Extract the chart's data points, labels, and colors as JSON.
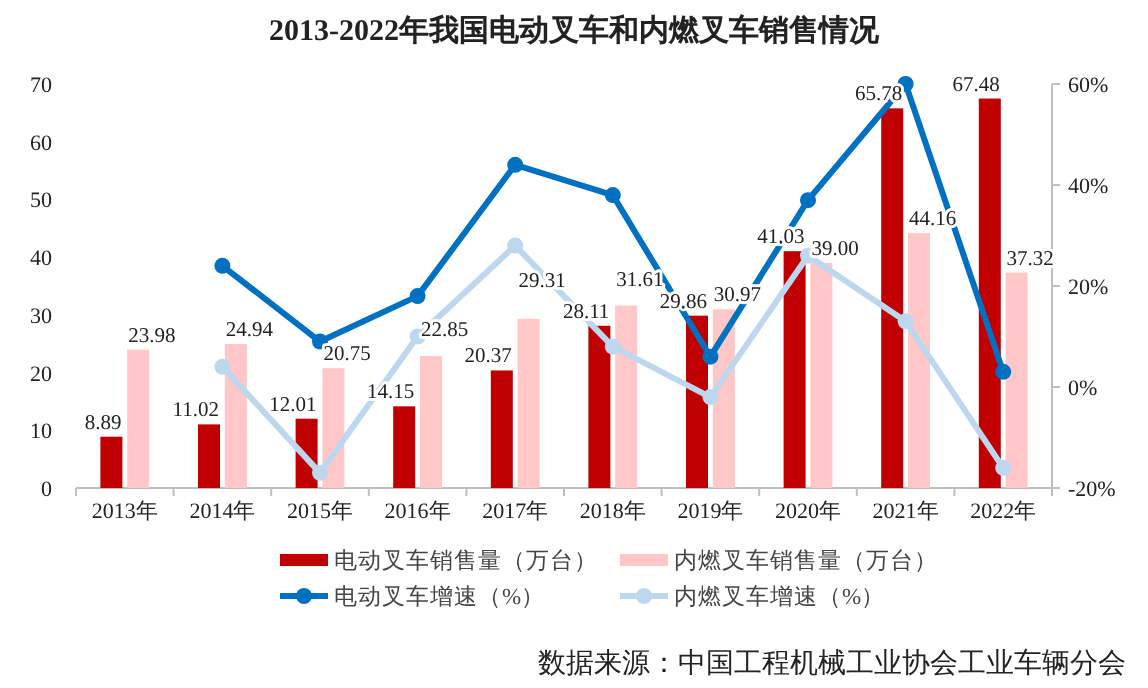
{
  "chart_data": {
    "type": "bar",
    "title": "2013-2022年我国电动叉车和内燃叉车销售情况",
    "categories": [
      "2013年",
      "2014年",
      "2015年",
      "2016年",
      "2017年",
      "2018年",
      "2019年",
      "2020年",
      "2021年",
      "2022年"
    ],
    "series": [
      {
        "name": "电动叉车销售量（万台）",
        "color": "#c00000",
        "values": [
          8.89,
          11.02,
          12.01,
          14.15,
          20.37,
          28.11,
          29.86,
          41.03,
          65.78,
          67.48
        ],
        "value_labels": [
          "8.89",
          "11.02",
          "12.01",
          "14.15",
          "20.37",
          "28.11",
          "29.86",
          "41.03",
          "65.78",
          "67.48"
        ]
      },
      {
        "name": "内燃叉车销售量（万台）",
        "color": "#ffc7c7",
        "values": [
          23.98,
          24.94,
          20.75,
          22.85,
          29.31,
          31.61,
          30.97,
          39.0,
          44.16,
          37.32
        ],
        "value_labels": [
          "23.98",
          "24.94",
          "20.75",
          "22.85",
          "29.31",
          "31.61",
          "30.97",
          "39.00",
          "44.16",
          "37.32"
        ]
      },
      {
        "name": "电动叉车增速（%）",
        "type": "line",
        "axis": "y2",
        "color": "#0070c0",
        "values": [
          null,
          24,
          9,
          18,
          44,
          38,
          6,
          37,
          60,
          3
        ]
      },
      {
        "name": "内燃叉车增速（%）",
        "type": "line",
        "axis": "y2",
        "color": "#bdd7ee",
        "values": [
          null,
          4,
          -17,
          10,
          28,
          8,
          -2,
          26,
          13,
          -16
        ]
      }
    ],
    "marker": "circle",
    "ylim": [
      0,
      70
    ],
    "yticks": [
      0,
      10,
      20,
      30,
      40,
      50,
      60,
      70
    ],
    "y2lim": [
      -20,
      60
    ],
    "y2ticks": [
      {
        "value": -20,
        "label": "-20%"
      },
      {
        "value": 0,
        "label": "0%"
      },
      {
        "value": 20,
        "label": "20%"
      },
      {
        "value": 40,
        "label": "40%"
      },
      {
        "value": 60,
        "label": "60%"
      }
    ],
    "legend": "bottom",
    "annotations": [
      "数据来源：中国工程机械工业协会工业车辆分会"
    ]
  }
}
